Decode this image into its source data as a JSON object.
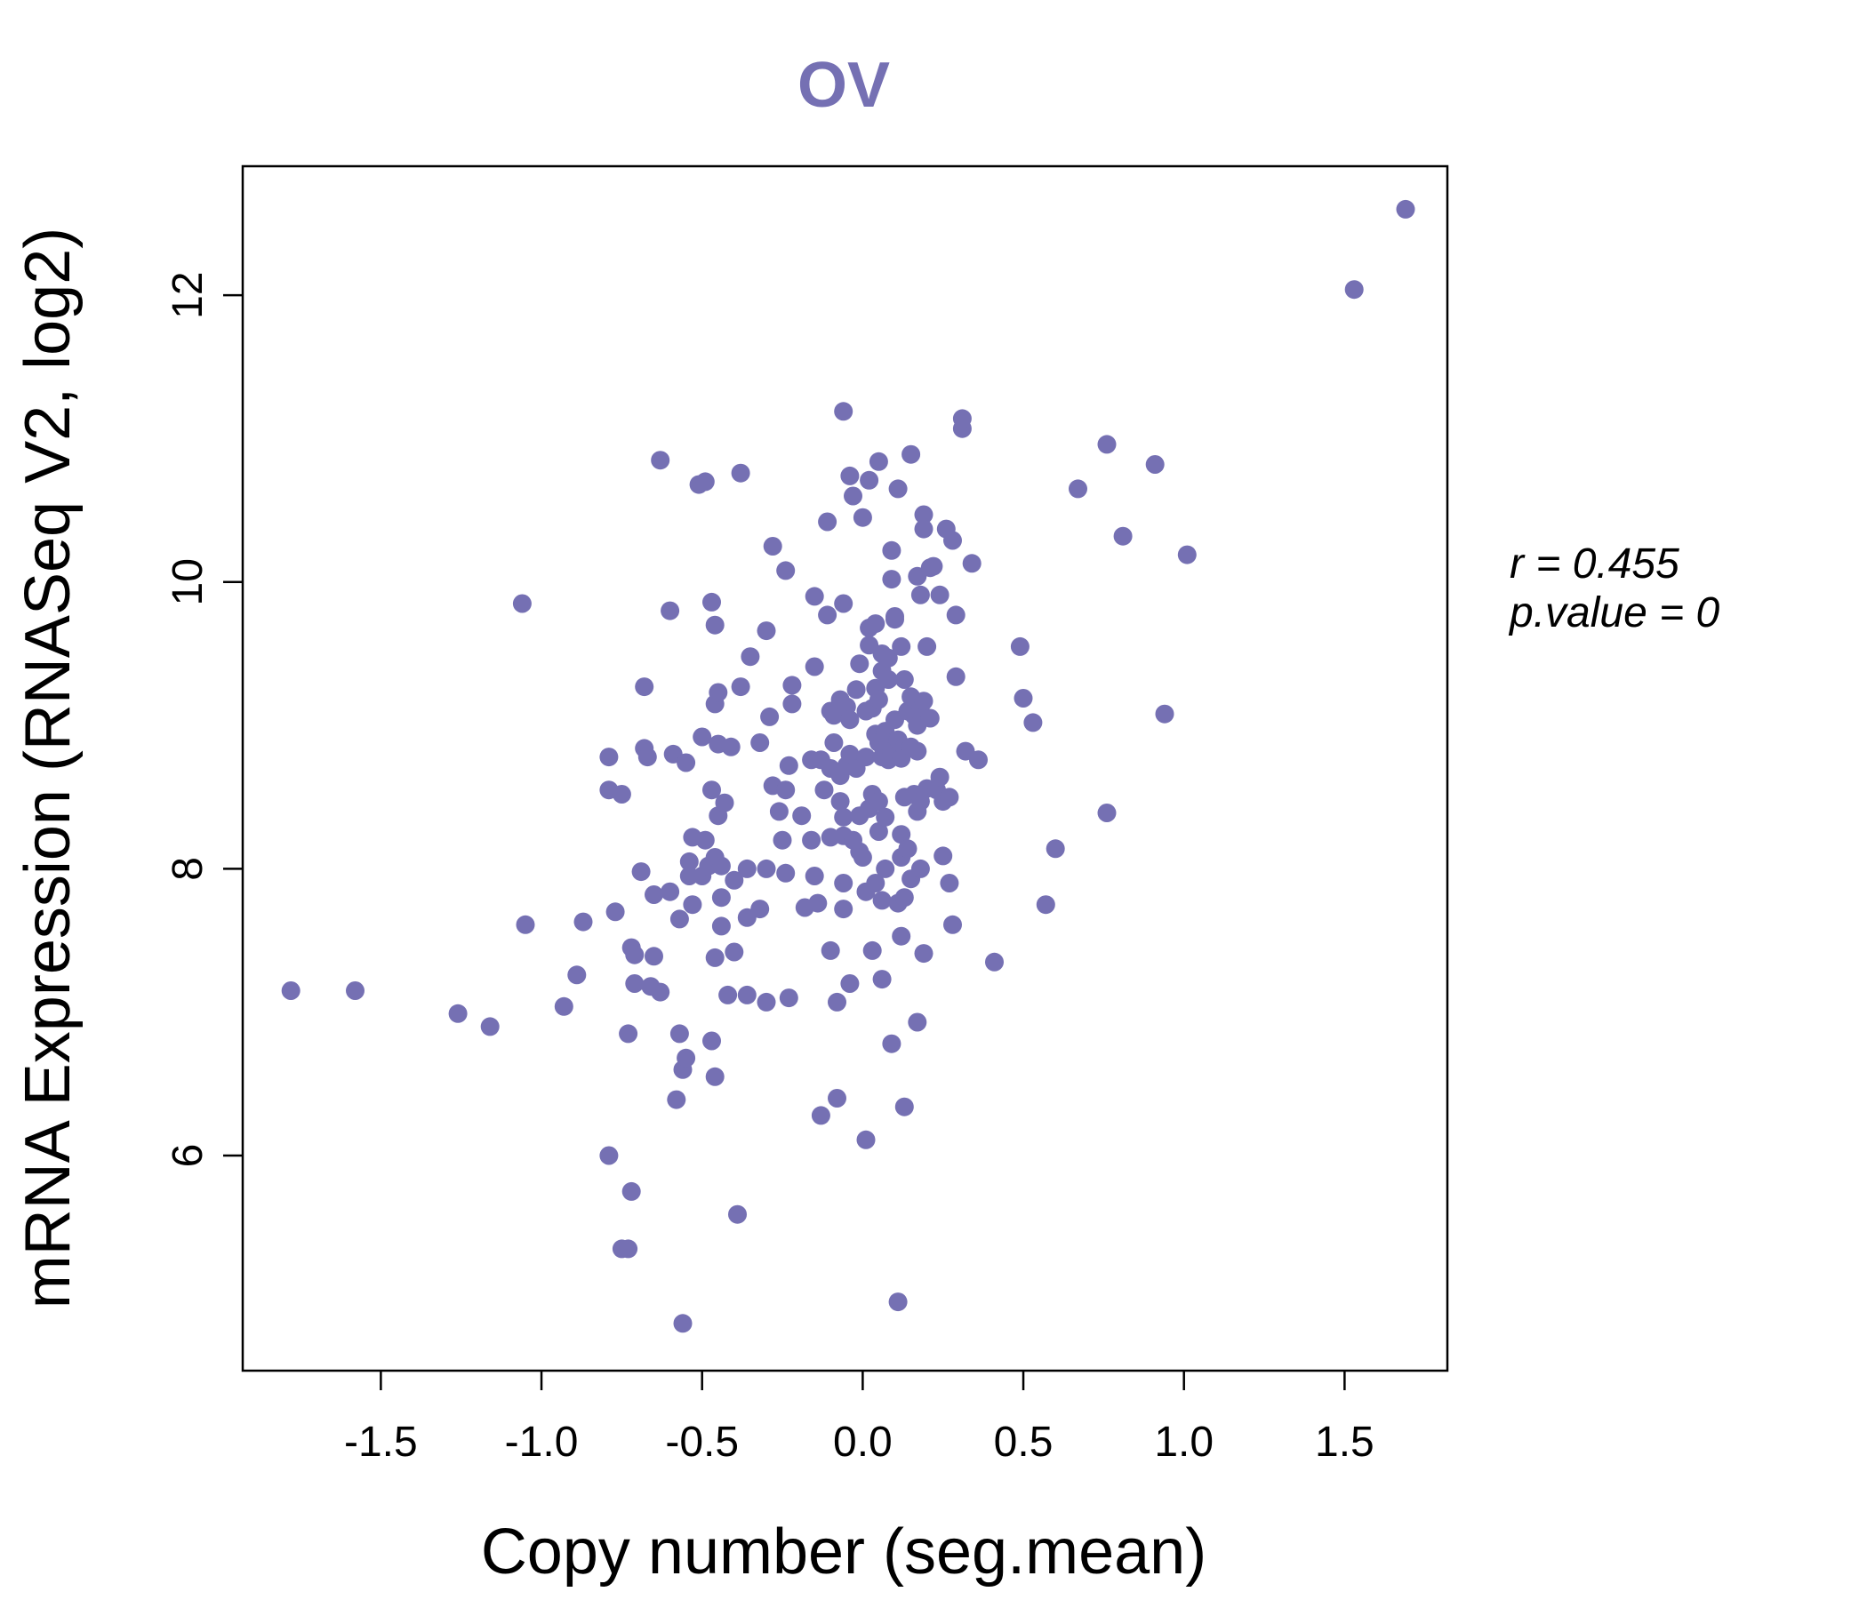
{
  "chart_data": {
    "type": "scatter",
    "title": "OV",
    "xlabel": "Copy number (seg.mean)",
    "ylabel": "mRNA Expression (RNASeq V2, log2)",
    "xlim": [
      -1.93,
      1.82
    ],
    "ylim": [
      4.5,
      12.9
    ],
    "x_ticks": [
      -1.5,
      -1.0,
      -0.5,
      0.0,
      0.5,
      1.0,
      1.5
    ],
    "x_tick_labels": [
      "-1.5",
      "-1.0",
      "-0.5",
      "0.0",
      "0.5",
      "1.0",
      "1.5"
    ],
    "y_ticks": [
      6,
      8,
      10,
      12
    ],
    "y_tick_labels": [
      "6",
      "8",
      "10",
      "12"
    ],
    "grid": false,
    "annotations": {
      "r_label": "r = 0.455",
      "p_label": "p.value = 0"
    },
    "colors": {
      "points": "#7570b3",
      "title": "#7570b3",
      "axes": "#000000"
    },
    "series": [
      {
        "points": [
          [
            -1.78,
            7.15
          ],
          [
            -1.58,
            7.15
          ],
          [
            -1.26,
            6.99
          ],
          [
            -1.16,
            6.9
          ],
          [
            -1.06,
            9.85
          ],
          [
            -1.05,
            7.61
          ],
          [
            -0.93,
            7.04
          ],
          [
            -0.89,
            7.26
          ],
          [
            -0.87,
            7.63
          ],
          [
            -0.79,
            8.78
          ],
          [
            -0.79,
            8.55
          ],
          [
            -0.79,
            6.0
          ],
          [
            -0.77,
            7.7
          ],
          [
            -0.75,
            8.52
          ],
          [
            -0.75,
            5.35
          ],
          [
            -0.73,
            5.35
          ],
          [
            -0.72,
            5.75
          ],
          [
            -0.73,
            6.85
          ],
          [
            -0.72,
            7.45
          ],
          [
            -0.71,
            7.4
          ],
          [
            -0.71,
            7.2
          ],
          [
            -0.69,
            7.98
          ],
          [
            -0.68,
            8.84
          ],
          [
            -0.68,
            9.27
          ],
          [
            -0.67,
            8.78
          ],
          [
            -0.66,
            7.18
          ],
          [
            -0.65,
            7.39
          ],
          [
            -0.65,
            7.82
          ],
          [
            -0.63,
            10.85
          ],
          [
            -0.63,
            7.14
          ],
          [
            -0.6,
            7.84
          ],
          [
            -0.6,
            9.8
          ],
          [
            -0.59,
            8.8
          ],
          [
            -0.58,
            6.39
          ],
          [
            -0.57,
            7.65
          ],
          [
            -0.57,
            6.85
          ],
          [
            -0.56,
            4.83
          ],
          [
            -0.56,
            6.6
          ],
          [
            -0.55,
            6.68
          ],
          [
            -0.55,
            8.74
          ],
          [
            -0.54,
            8.05
          ],
          [
            -0.54,
            7.95
          ],
          [
            -0.53,
            7.75
          ],
          [
            -0.53,
            8.22
          ],
          [
            -0.51,
            10.68
          ],
          [
            -0.5,
            7.95
          ],
          [
            -0.5,
            8.92
          ],
          [
            -0.49,
            10.7
          ],
          [
            -0.49,
            8.2
          ],
          [
            -0.48,
            8.02
          ],
          [
            -0.47,
            6.8
          ],
          [
            -0.47,
            8.55
          ],
          [
            -0.47,
            9.86
          ],
          [
            -0.46,
            8.08
          ],
          [
            -0.46,
            9.15
          ],
          [
            -0.46,
            9.7
          ],
          [
            -0.46,
            6.55
          ],
          [
            -0.46,
            7.38
          ],
          [
            -0.45,
            8.37
          ],
          [
            -0.45,
            9.23
          ],
          [
            -0.45,
            8.87
          ],
          [
            -0.44,
            8.02
          ],
          [
            -0.44,
            7.6
          ],
          [
            -0.44,
            7.8
          ],
          [
            -0.43,
            8.46
          ],
          [
            -0.42,
            7.12
          ],
          [
            -0.41,
            8.85
          ],
          [
            -0.4,
            7.92
          ],
          [
            -0.4,
            7.42
          ],
          [
            -0.39,
            5.59
          ],
          [
            -0.38,
            10.76
          ],
          [
            -0.38,
            9.27
          ],
          [
            -0.36,
            7.12
          ],
          [
            -0.36,
            7.66
          ],
          [
            -0.36,
            8.0
          ],
          [
            -0.35,
            9.48
          ],
          [
            -0.32,
            8.88
          ],
          [
            -0.32,
            7.72
          ],
          [
            -0.3,
            7.07
          ],
          [
            -0.3,
            8.0
          ],
          [
            -0.3,
            9.66
          ],
          [
            -0.29,
            9.06
          ],
          [
            -0.28,
            10.25
          ],
          [
            -0.28,
            8.58
          ],
          [
            -0.26,
            8.4
          ],
          [
            -0.25,
            8.2
          ],
          [
            -0.24,
            8.55
          ],
          [
            -0.24,
            10.08
          ],
          [
            -0.24,
            7.97
          ],
          [
            -0.23,
            8.72
          ],
          [
            -0.23,
            7.1
          ],
          [
            -0.22,
            9.15
          ],
          [
            -0.22,
            9.28
          ],
          [
            -0.19,
            8.37
          ],
          [
            -0.18,
            7.73
          ],
          [
            -0.16,
            8.76
          ],
          [
            -0.16,
            8.2
          ],
          [
            -0.15,
            9.41
          ],
          [
            -0.15,
            9.9
          ],
          [
            -0.15,
            7.95
          ],
          [
            -0.14,
            7.76
          ],
          [
            -0.13,
            8.76
          ],
          [
            -0.13,
            6.28
          ],
          [
            -0.12,
            8.55
          ],
          [
            -0.11,
            10.42
          ],
          [
            -0.11,
            9.77
          ],
          [
            -0.1,
            9.1
          ],
          [
            -0.1,
            8.7
          ],
          [
            -0.1,
            8.22
          ],
          [
            -0.1,
            7.43
          ],
          [
            -0.09,
            8.88
          ],
          [
            -0.09,
            9.07
          ],
          [
            -0.08,
            7.07
          ],
          [
            -0.08,
            6.4
          ],
          [
            -0.07,
            9.18
          ],
          [
            -0.07,
            8.65
          ],
          [
            -0.07,
            8.47
          ],
          [
            -0.06,
            7.72
          ],
          [
            -0.06,
            7.9
          ],
          [
            -0.06,
            8.36
          ],
          [
            -0.06,
            8.23
          ],
          [
            -0.06,
            9.85
          ],
          [
            -0.06,
            11.19
          ],
          [
            -0.05,
            9.13
          ],
          [
            -0.05,
            8.72
          ],
          [
            -0.04,
            8.8
          ],
          [
            -0.04,
            7.2
          ],
          [
            -0.04,
            9.04
          ],
          [
            -0.04,
            10.74
          ],
          [
            -0.03,
            10.6
          ],
          [
            -0.03,
            8.2
          ],
          [
            -0.02,
            9.25
          ],
          [
            -0.02,
            8.7
          ],
          [
            -0.01,
            9.43
          ],
          [
            -0.01,
            8.37
          ],
          [
            -0.01,
            8.12
          ],
          [
            0.0,
            8.08
          ],
          [
            0.0,
            10.45
          ],
          [
            0.01,
            9.1
          ],
          [
            0.01,
            7.84
          ],
          [
            0.01,
            8.78
          ],
          [
            0.01,
            6.11
          ],
          [
            0.02,
            9.56
          ],
          [
            0.02,
            9.68
          ],
          [
            0.02,
            8.42
          ],
          [
            0.02,
            10.71
          ],
          [
            0.03,
            9.12
          ],
          [
            0.03,
            8.52
          ],
          [
            0.03,
            7.43
          ],
          [
            0.04,
            9.71
          ],
          [
            0.04,
            8.94
          ],
          [
            0.04,
            7.9
          ],
          [
            0.04,
            9.26
          ],
          [
            0.05,
            8.26
          ],
          [
            0.05,
            8.88
          ],
          [
            0.05,
            9.18
          ],
          [
            0.05,
            8.47
          ],
          [
            0.05,
            10.84
          ],
          [
            0.06,
            7.23
          ],
          [
            0.06,
            8.78
          ],
          [
            0.06,
            9.38
          ],
          [
            0.06,
            7.78
          ],
          [
            0.06,
            9.5
          ],
          [
            0.07,
            8.36
          ],
          [
            0.07,
            8.0
          ],
          [
            0.07,
            8.96
          ],
          [
            0.08,
            9.32
          ],
          [
            0.08,
            8.88
          ],
          [
            0.08,
            8.76
          ],
          [
            0.08,
            9.47
          ],
          [
            0.09,
            10.02
          ],
          [
            0.09,
            10.22
          ],
          [
            0.09,
            6.78
          ],
          [
            0.09,
            8.82
          ],
          [
            0.1,
            9.74
          ],
          [
            0.1,
            9.76
          ],
          [
            0.1,
            9.04
          ],
          [
            0.11,
            10.65
          ],
          [
            0.11,
            8.9
          ],
          [
            0.11,
            4.98
          ],
          [
            0.11,
            7.76
          ],
          [
            0.12,
            8.08
          ],
          [
            0.12,
            8.77
          ],
          [
            0.12,
            7.53
          ],
          [
            0.12,
            9.55
          ],
          [
            0.12,
            8.24
          ],
          [
            0.13,
            8.85
          ],
          [
            0.13,
            9.32
          ],
          [
            0.13,
            7.8
          ],
          [
            0.13,
            8.5
          ],
          [
            0.13,
            6.34
          ],
          [
            0.14,
            9.1
          ],
          [
            0.14,
            8.14
          ],
          [
            0.15,
            8.85
          ],
          [
            0.15,
            9.2
          ],
          [
            0.15,
            7.93
          ],
          [
            0.15,
            10.89
          ],
          [
            0.16,
            8.52
          ],
          [
            0.16,
            9.07
          ],
          [
            0.17,
            8.82
          ],
          [
            0.17,
            8.4
          ],
          [
            0.17,
            9.0
          ],
          [
            0.17,
            6.93
          ],
          [
            0.17,
            10.04
          ],
          [
            0.18,
            8.47
          ],
          [
            0.18,
            9.13
          ],
          [
            0.18,
            8.0
          ],
          [
            0.18,
            9.91
          ],
          [
            0.19,
            10.47
          ],
          [
            0.19,
            9.17
          ],
          [
            0.19,
            7.41
          ],
          [
            0.19,
            10.37
          ],
          [
            0.2,
            9.55
          ],
          [
            0.2,
            8.56
          ],
          [
            0.21,
            9.05
          ],
          [
            0.21,
            10.1
          ],
          [
            0.22,
            10.11
          ],
          [
            0.23,
            8.55
          ],
          [
            0.24,
            8.64
          ],
          [
            0.24,
            9.91
          ],
          [
            0.25,
            8.47
          ],
          [
            0.25,
            8.09
          ],
          [
            0.26,
            10.37
          ],
          [
            0.27,
            7.9
          ],
          [
            0.27,
            8.5
          ],
          [
            0.28,
            10.29
          ],
          [
            0.28,
            7.61
          ],
          [
            0.29,
            9.34
          ],
          [
            0.29,
            9.77
          ],
          [
            0.31,
            11.07
          ],
          [
            0.31,
            11.14
          ],
          [
            0.32,
            8.82
          ],
          [
            0.34,
            10.13
          ],
          [
            0.36,
            8.76
          ],
          [
            0.41,
            7.35
          ],
          [
            0.49,
            9.55
          ],
          [
            0.5,
            9.19
          ],
          [
            0.53,
            9.02
          ],
          [
            0.57,
            7.75
          ],
          [
            0.6,
            8.14
          ],
          [
            0.67,
            10.65
          ],
          [
            0.76,
            10.96
          ],
          [
            0.76,
            8.39
          ],
          [
            0.81,
            10.32
          ],
          [
            0.91,
            10.82
          ],
          [
            0.94,
            9.08
          ],
          [
            1.01,
            10.19
          ],
          [
            1.53,
            12.04
          ],
          [
            1.69,
            12.6
          ]
        ]
      }
    ]
  }
}
